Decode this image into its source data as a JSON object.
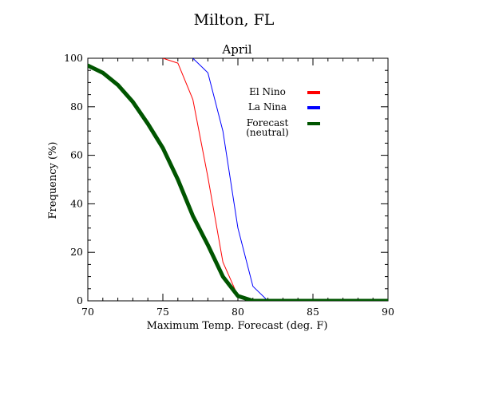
{
  "title": "Milton, FL",
  "subtitle": "April",
  "chart_data": {
    "type": "line",
    "title": "Milton, FL",
    "subtitle": "April",
    "xlabel": "Maximum Temp. Forecast (deg. F)",
    "ylabel": "Frequency (%)",
    "xlim": [
      70,
      90
    ],
    "ylim": [
      0,
      100
    ],
    "x_ticks": [
      "70",
      "75",
      "80",
      "85",
      "90"
    ],
    "y_ticks": [
      "0",
      "20",
      "40",
      "60",
      "80",
      "100"
    ],
    "grid": false,
    "legend_position": "upper-right",
    "series": [
      {
        "name": "El Nino",
        "color": "#ff0000",
        "x": [
          75,
          76,
          77,
          78,
          79,
          80,
          81,
          82,
          83,
          84,
          85,
          86,
          87,
          88,
          89,
          90
        ],
        "y": [
          100,
          98,
          83,
          51,
          16,
          2,
          0,
          0,
          0,
          0,
          0,
          0,
          0,
          0,
          0,
          0
        ]
      },
      {
        "name": "La Nina",
        "color": "#0000ff",
        "x": [
          77,
          78,
          79,
          80,
          81,
          82,
          83,
          84,
          85,
          86,
          87,
          88,
          89,
          90
        ],
        "y": [
          100,
          94,
          70,
          30,
          6,
          0,
          0,
          0,
          0,
          0,
          0,
          0,
          0,
          0
        ]
      },
      {
        "name": "Forecast\n(neutral)",
        "name_lines": [
          "Forecast",
          "(neutral)"
        ],
        "color": "#005500",
        "x": [
          70,
          71,
          72,
          73,
          74,
          75,
          76,
          77,
          78,
          79,
          80,
          81,
          82,
          83,
          84,
          85,
          86,
          87,
          88,
          89,
          90
        ],
        "y": [
          97,
          94,
          89,
          82,
          73,
          63,
          50,
          35,
          23,
          10,
          2,
          0,
          0,
          0,
          0,
          0,
          0,
          0,
          0,
          0,
          0
        ]
      }
    ]
  }
}
